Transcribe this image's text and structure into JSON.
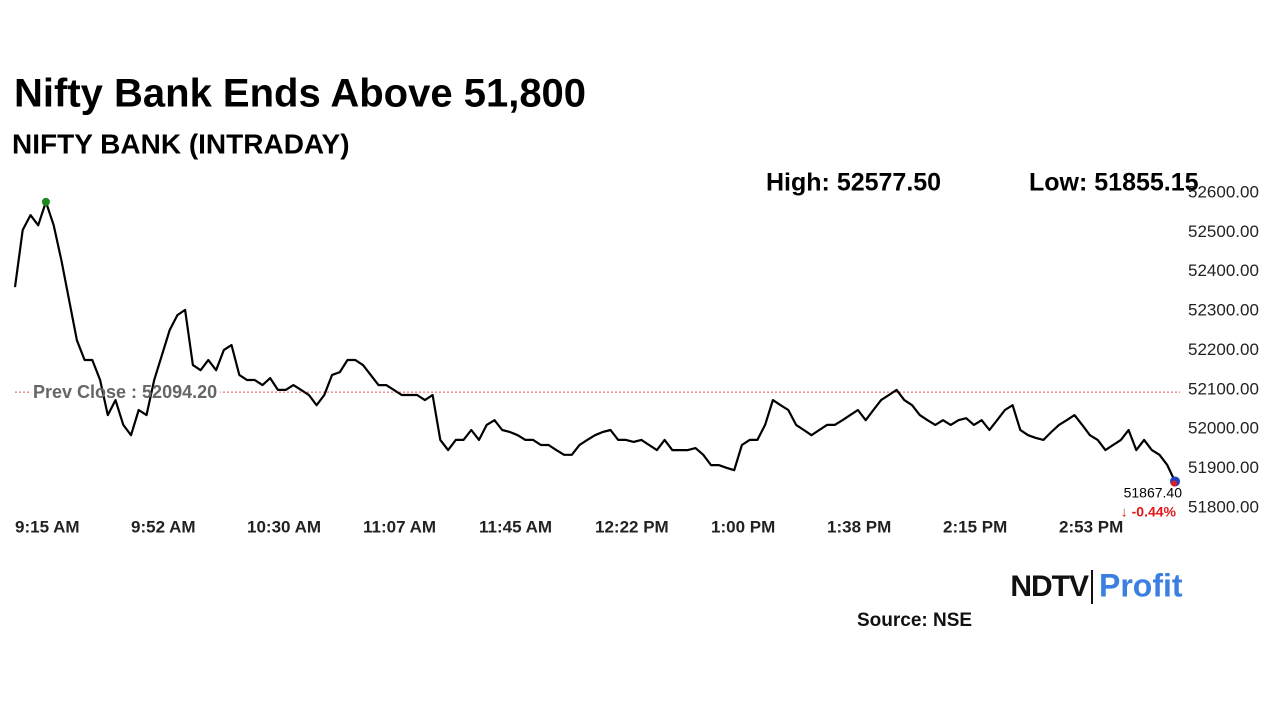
{
  "chart_data": {
    "type": "line",
    "title": "Nifty Bank Ends Above 51,800",
    "subtitle": "NIFTY BANK (INTRADAY)",
    "high_label": "High: 52577.50",
    "low_label": "Low: 51855.15",
    "prev_close": 52094.2,
    "prev_close_label": "Prev Close : 52094.20",
    "last_label": "51867.40",
    "change_label": "↓ -0.44%",
    "source": "Source: NSE",
    "logo": [
      "NDTV",
      "Profit"
    ],
    "ylim": [
      51800,
      52600
    ],
    "yticks": [
      {
        "value": 51800,
        "label": "51800.00"
      },
      {
        "value": 51900,
        "label": "51900.00"
      },
      {
        "value": 52000,
        "label": "52000.00"
      },
      {
        "value": 52100,
        "label": "52100.00"
      },
      {
        "value": 52200,
        "label": "52200.00"
      },
      {
        "value": 52300,
        "label": "52300.00"
      },
      {
        "value": 52400,
        "label": "52400.00"
      },
      {
        "value": 52500,
        "label": "52500.00"
      },
      {
        "value": 52600,
        "label": "52600.00"
      }
    ],
    "categories": [
      "9:15 AM",
      null,
      null,
      null,
      null,
      null,
      null,
      null,
      null,
      null,
      null,
      null,
      null,
      null,
      null,
      "9:52 AM",
      null,
      null,
      null,
      null,
      null,
      null,
      null,
      null,
      null,
      null,
      null,
      null,
      null,
      null,
      "10:30 AM",
      null,
      null,
      null,
      null,
      null,
      null,
      null,
      null,
      null,
      null,
      null,
      null,
      null,
      null,
      "11:07 AM",
      null,
      null,
      null,
      null,
      null,
      null,
      null,
      null,
      null,
      null,
      null,
      null,
      null,
      null,
      "11:45 AM",
      null,
      null,
      null,
      null,
      null,
      null,
      null,
      null,
      null,
      null,
      null,
      null,
      null,
      null,
      "12:22 PM",
      null,
      null,
      null,
      null,
      null,
      null,
      null,
      null,
      null,
      null,
      null,
      null,
      null,
      null,
      "1:00 PM",
      null,
      null,
      null,
      null,
      null,
      null,
      null,
      null,
      null,
      null,
      null,
      null,
      null,
      null,
      "1:38 PM",
      null,
      null,
      null,
      null,
      null,
      null,
      null,
      null,
      null,
      null,
      null,
      null,
      null,
      null,
      "2:15 PM",
      null,
      null,
      null,
      null,
      null,
      null,
      null,
      null,
      null,
      null,
      null,
      null,
      null,
      null,
      "2:53 PM",
      null,
      null,
      null,
      null,
      null,
      null,
      null,
      null,
      null,
      null,
      null,
      null,
      null,
      null,
      null
    ],
    "series": [
      {
        "name": "NIFTY BANK",
        "color": "#000000",
        "values": [
          52361,
          52506,
          52544,
          52518,
          52577.5,
          52518,
          52429,
          52328,
          52226,
          52176,
          52176,
          52125,
          52036,
          52074,
          52011,
          51985,
          52049,
          52036,
          52125,
          52188,
          52252,
          52290,
          52303,
          52163,
          52150,
          52176,
          52150,
          52201,
          52214,
          52138,
          52125,
          52125,
          52112,
          52130,
          52100,
          52100,
          52112,
          52100,
          52087,
          52061,
          52087,
          52138,
          52145,
          52176,
          52176,
          52163,
          52138,
          52112,
          52112,
          52100,
          52087,
          52087,
          52087,
          52074,
          52087,
          51973,
          51947,
          51973,
          51973,
          51998,
          51973,
          52011,
          52023,
          51998,
          51993,
          51985,
          51973,
          51973,
          51960,
          51960,
          51947,
          51935,
          51935,
          51960,
          51973,
          51985,
          51993,
          51998,
          51973,
          51973,
          51968,
          51973,
          51960,
          51947,
          51973,
          51947,
          51947,
          51947,
          51952,
          51935,
          51909,
          51909,
          51902,
          51896,
          51960,
          51973,
          51973,
          52011,
          52074,
          52061,
          52049,
          52011,
          51998,
          51985,
          51998,
          52011,
          52011,
          52023,
          52036,
          52049,
          52023,
          52049,
          52074,
          52087,
          52100,
          52074,
          52061,
          52036,
          52023,
          52011,
          52023,
          52011,
          52023,
          52028,
          52011,
          52023,
          51998,
          52023,
          52049,
          52061,
          51998,
          51985,
          51978,
          51973,
          51993,
          52011,
          52023,
          52036,
          52011,
          51985,
          51973,
          51947,
          51960,
          51973,
          51998,
          51947,
          51973,
          51947,
          51935,
          51909,
          51867.4
        ]
      }
    ]
  }
}
